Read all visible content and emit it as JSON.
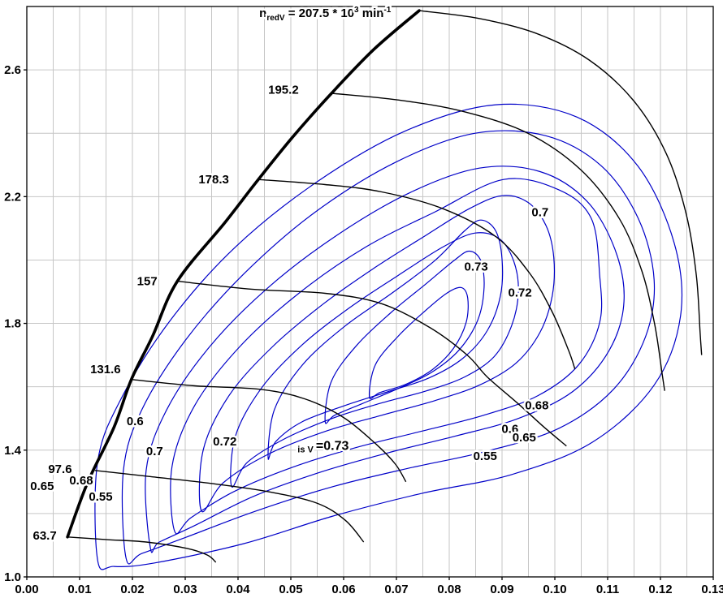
{
  "chart_data": {
    "type": "contour-map",
    "title": {
      "n": "n",
      "sub": "redV",
      "eq": " = 207.5 * 10",
      "exp": "3",
      "unit": " min",
      "unit_exp": "-1"
    },
    "center_label": {
      "sub": "is V ",
      "value": "=0.73",
      "x": 0.0562,
      "y": 1.413
    },
    "x_axis": {
      "min": 0.0,
      "max": 0.13,
      "grid_step": 0.005,
      "label_step": 0.01,
      "tick_labels": [
        "0.00",
        "0.01",
        "0.02",
        "0.03",
        "0.04",
        "0.05",
        "0.06",
        "0.07",
        "0.08",
        "0.09",
        "0.10",
        "0.11",
        "0.12",
        "0.13"
      ]
    },
    "y_axis": {
      "min": 1.0,
      "max": 2.8,
      "grid_step": 0.2,
      "label_step": 0.4,
      "tick_labels": [
        "1.0",
        "1.4",
        "1.8",
        "2.2",
        "2.6"
      ]
    },
    "colors": {
      "contour": "#0000c8",
      "line": "#000000",
      "grid": "#c6c6c6",
      "text": "#000000",
      "background": "#ffffff"
    },
    "surge_line": {
      "points": [
        [
          0.0077,
          1.126
        ],
        [
          0.0115,
          1.297
        ],
        [
          0.0165,
          1.472
        ],
        [
          0.0198,
          1.623
        ],
        [
          0.0238,
          1.759
        ],
        [
          0.0285,
          1.933
        ],
        [
          0.0375,
          2.118
        ],
        [
          0.0437,
          2.251
        ],
        [
          0.0503,
          2.387
        ],
        [
          0.0577,
          2.526
        ],
        [
          0.0657,
          2.664
        ],
        [
          0.0743,
          2.787
        ]
      ]
    },
    "speed_lines": [
      {
        "name": "63.7",
        "points": [
          [
            0.0077,
            1.126
          ],
          [
            0.0149,
            1.118
          ],
          [
            0.0226,
            1.11
          ],
          [
            0.0303,
            1.09
          ],
          [
            0.0342,
            1.069
          ],
          [
            0.0358,
            1.046
          ]
        ]
      },
      {
        "name": "97.6",
        "points": [
          [
            0.0129,
            1.336
          ],
          [
            0.0226,
            1.318
          ],
          [
            0.0349,
            1.295
          ],
          [
            0.0457,
            1.269
          ],
          [
            0.0549,
            1.233
          ],
          [
            0.0603,
            1.179
          ],
          [
            0.0638,
            1.11
          ]
        ]
      },
      {
        "name": "131.6",
        "points": [
          [
            0.0198,
            1.623
          ],
          [
            0.0318,
            1.603
          ],
          [
            0.0442,
            1.592
          ],
          [
            0.0526,
            1.562
          ],
          [
            0.06,
            1.503
          ],
          [
            0.0662,
            1.418
          ],
          [
            0.0698,
            1.356
          ],
          [
            0.0718,
            1.3
          ]
        ]
      },
      {
        "name": "157",
        "points": [
          [
            0.0285,
            1.933
          ],
          [
            0.0426,
            1.908
          ],
          [
            0.0565,
            1.895
          ],
          [
            0.0672,
            1.862
          ],
          [
            0.0765,
            1.785
          ],
          [
            0.0834,
            1.7
          ],
          [
            0.0872,
            1.631
          ],
          [
            0.0931,
            1.546
          ],
          [
            0.098,
            1.472
          ],
          [
            0.1022,
            1.413
          ]
        ]
      },
      {
        "name": "178.3",
        "points": [
          [
            0.0438,
            2.254
          ],
          [
            0.0565,
            2.238
          ],
          [
            0.0672,
            2.215
          ],
          [
            0.0788,
            2.162
          ],
          [
            0.0888,
            2.074
          ],
          [
            0.0952,
            1.959
          ],
          [
            0.0995,
            1.836
          ],
          [
            0.1026,
            1.715
          ],
          [
            0.1038,
            1.656
          ]
        ]
      },
      {
        "name": "195.2",
        "points": [
          [
            0.0577,
            2.526
          ],
          [
            0.0703,
            2.505
          ],
          [
            0.0826,
            2.469
          ],
          [
            0.0949,
            2.4
          ],
          [
            0.1049,
            2.285
          ],
          [
            0.1122,
            2.131
          ],
          [
            0.1165,
            1.964
          ],
          [
            0.1189,
            1.797
          ],
          [
            0.1203,
            1.644
          ],
          [
            0.1208,
            1.587
          ]
        ]
      },
      {
        "name": "207.5",
        "points": [
          [
            0.0743,
            2.787
          ],
          [
            0.0857,
            2.762
          ],
          [
            0.0965,
            2.715
          ],
          [
            0.1065,
            2.631
          ],
          [
            0.1149,
            2.503
          ],
          [
            0.1211,
            2.336
          ],
          [
            0.1249,
            2.144
          ],
          [
            0.1268,
            1.951
          ],
          [
            0.1275,
            1.772
          ],
          [
            0.1278,
            1.7
          ]
        ]
      }
    ],
    "efficiency_contours": [
      {
        "level": "0.55",
        "points": [
          [
            0.0134,
            1.054
          ],
          [
            0.0134,
            1.362
          ],
          [
            0.018,
            1.567
          ],
          [
            0.0272,
            1.81
          ],
          [
            0.0395,
            2.041
          ],
          [
            0.0549,
            2.246
          ],
          [
            0.0718,
            2.408
          ],
          [
            0.0888,
            2.49
          ],
          [
            0.1042,
            2.451
          ],
          [
            0.1157,
            2.297
          ],
          [
            0.1226,
            2.054
          ],
          [
            0.1238,
            1.823
          ],
          [
            0.1188,
            1.605
          ],
          [
            0.1072,
            1.426
          ],
          [
            0.0918,
            1.323
          ],
          [
            0.0749,
            1.264
          ],
          [
            0.058,
            1.192
          ],
          [
            0.0411,
            1.105
          ],
          [
            0.0242,
            1.044
          ],
          [
            0.0165,
            1.033
          ]
        ]
      },
      {
        "level": "0.6",
        "points": [
          [
            0.0188,
            1.059
          ],
          [
            0.0183,
            1.336
          ],
          [
            0.0218,
            1.528
          ],
          [
            0.03,
            1.746
          ],
          [
            0.0411,
            1.956
          ],
          [
            0.0546,
            2.151
          ],
          [
            0.07,
            2.31
          ],
          [
            0.0849,
            2.4
          ],
          [
            0.0983,
            2.392
          ],
          [
            0.1088,
            2.297
          ],
          [
            0.1158,
            2.131
          ],
          [
            0.1188,
            1.938
          ],
          [
            0.1172,
            1.759
          ],
          [
            0.1111,
            1.592
          ],
          [
            0.1008,
            1.469
          ],
          [
            0.0872,
            1.397
          ],
          [
            0.0726,
            1.344
          ],
          [
            0.058,
            1.285
          ],
          [
            0.0434,
            1.208
          ],
          [
            0.0303,
            1.126
          ],
          [
            0.0218,
            1.074
          ]
        ]
      },
      {
        "level": "0.65",
        "points": [
          [
            0.0234,
            1.092
          ],
          [
            0.0226,
            1.336
          ],
          [
            0.0265,
            1.528
          ],
          [
            0.0346,
            1.726
          ],
          [
            0.0457,
            1.913
          ],
          [
            0.0588,
            2.079
          ],
          [
            0.0726,
            2.213
          ],
          [
            0.0857,
            2.29
          ],
          [
            0.0972,
            2.279
          ],
          [
            0.106,
            2.187
          ],
          [
            0.1114,
            2.033
          ],
          [
            0.1131,
            1.869
          ],
          [
            0.1103,
            1.715
          ],
          [
            0.1034,
            1.585
          ],
          [
            0.0931,
            1.5
          ],
          [
            0.0811,
            1.444
          ],
          [
            0.0685,
            1.392
          ],
          [
            0.0557,
            1.331
          ],
          [
            0.0429,
            1.254
          ],
          [
            0.0318,
            1.162
          ],
          [
            0.0251,
            1.11
          ]
        ]
      },
      {
        "level": "0.68",
        "points": [
          [
            0.028,
            1.144
          ],
          [
            0.0275,
            1.349
          ],
          [
            0.0318,
            1.541
          ],
          [
            0.0403,
            1.726
          ],
          [
            0.0515,
            1.895
          ],
          [
            0.0642,
            2.041
          ],
          [
            0.0772,
            2.151
          ],
          [
            0.0903,
            2.254
          ],
          [
            0.1008,
            2.221
          ],
          [
            0.1069,
            2.131
          ],
          [
            0.1085,
            1.951
          ],
          [
            0.1085,
            1.803
          ],
          [
            0.1045,
            1.669
          ],
          [
            0.0968,
            1.572
          ],
          [
            0.0865,
            1.51
          ],
          [
            0.0746,
            1.459
          ],
          [
            0.0623,
            1.408
          ],
          [
            0.0503,
            1.346
          ],
          [
            0.0392,
            1.269
          ],
          [
            0.0311,
            1.187
          ]
        ]
      },
      {
        "level": "0.7",
        "points": [
          [
            0.0331,
            1.208
          ],
          [
            0.0334,
            1.4
          ],
          [
            0.0383,
            1.572
          ],
          [
            0.0465,
            1.726
          ],
          [
            0.0562,
            1.862
          ],
          [
            0.066,
            1.977
          ],
          [
            0.0757,
            2.079
          ],
          [
            0.0838,
            2.162
          ],
          [
            0.09,
            2.203
          ],
          [
            0.0949,
            2.182
          ],
          [
            0.0983,
            2.11
          ],
          [
            0.0998,
            2.008
          ],
          [
            0.0995,
            1.887
          ],
          [
            0.0972,
            1.772
          ],
          [
            0.0926,
            1.674
          ],
          [
            0.0857,
            1.605
          ],
          [
            0.0772,
            1.556
          ],
          [
            0.0672,
            1.51
          ],
          [
            0.0565,
            1.459
          ],
          [
            0.0457,
            1.387
          ],
          [
            0.0372,
            1.297
          ]
        ]
      },
      {
        "level": "0.72",
        "points": [
          [
            0.0388,
            1.285
          ],
          [
            0.0395,
            1.444
          ],
          [
            0.0445,
            1.597
          ],
          [
            0.0522,
            1.733
          ],
          [
            0.0611,
            1.849
          ],
          [
            0.0703,
            1.951
          ],
          [
            0.0788,
            2.041
          ],
          [
            0.0849,
            2.085
          ],
          [
            0.0895,
            2.067
          ],
          [
            0.0922,
            1.997
          ],
          [
            0.0931,
            1.9
          ],
          [
            0.0918,
            1.792
          ],
          [
            0.0885,
            1.695
          ],
          [
            0.0829,
            1.631
          ],
          [
            0.0757,
            1.587
          ],
          [
            0.0672,
            1.549
          ],
          [
            0.0583,
            1.503
          ],
          [
            0.0491,
            1.438
          ],
          [
            0.0418,
            1.362
          ]
        ]
      },
      {
        "level": "0.73",
        "points": [
          [
            0.0457,
            1.374
          ],
          [
            0.0469,
            1.528
          ],
          [
            0.0522,
            1.669
          ],
          [
            0.0603,
            1.792
          ],
          [
            0.0691,
            1.895
          ],
          [
            0.0772,
            1.997
          ],
          [
            0.0829,
            2.092
          ],
          [
            0.086,
            2.126
          ],
          [
            0.0888,
            2.092
          ],
          [
            0.09,
            2.003
          ],
          [
            0.0897,
            1.887
          ],
          [
            0.0872,
            1.777
          ],
          [
            0.0826,
            1.69
          ],
          [
            0.0762,
            1.628
          ],
          [
            0.0685,
            1.585
          ],
          [
            0.0603,
            1.541
          ],
          [
            0.0522,
            1.49
          ],
          [
            0.0472,
            1.428
          ]
        ]
      },
      {
        "level": "",
        "points": [
          [
            0.0565,
            1.49
          ],
          [
            0.0577,
            1.618
          ],
          [
            0.0626,
            1.733
          ],
          [
            0.0691,
            1.836
          ],
          [
            0.0757,
            1.926
          ],
          [
            0.0808,
            1.997
          ],
          [
            0.0838,
            2.028
          ],
          [
            0.086,
            1.997
          ],
          [
            0.0866,
            1.913
          ],
          [
            0.0854,
            1.81
          ],
          [
            0.0818,
            1.715
          ],
          [
            0.0765,
            1.644
          ],
          [
            0.07,
            1.592
          ],
          [
            0.0634,
            1.546
          ],
          [
            0.0583,
            1.51
          ]
        ]
      },
      {
        "level": "",
        "points": [
          [
            0.0649,
            1.567
          ],
          [
            0.066,
            1.669
          ],
          [
            0.0703,
            1.759
          ],
          [
            0.0752,
            1.836
          ],
          [
            0.0795,
            1.895
          ],
          [
            0.0823,
            1.913
          ],
          [
            0.0835,
            1.879
          ],
          [
            0.0832,
            1.803
          ],
          [
            0.0808,
            1.721
          ],
          [
            0.0768,
            1.654
          ],
          [
            0.0718,
            1.608
          ],
          [
            0.0669,
            1.582
          ]
        ]
      }
    ],
    "speed_labels": [
      {
        "text": "63.7",
        "x": 0.0034,
        "y": 1.131
      },
      {
        "text": "97.6",
        "x": 0.0063,
        "y": 1.341
      },
      {
        "text": "131.6",
        "x": 0.0149,
        "y": 1.656
      },
      {
        "text": "157",
        "x": 0.0228,
        "y": 1.933
      },
      {
        "text": "178.3",
        "x": 0.0354,
        "y": 2.254
      },
      {
        "text": "195.2",
        "x": 0.0486,
        "y": 2.538
      }
    ],
    "efficiency_labels": [
      {
        "text": "0.65",
        "x": 0.0029,
        "y": 1.287
      },
      {
        "text": "0.68",
        "x": 0.0103,
        "y": 1.305
      },
      {
        "text": "0.55",
        "x": 0.014,
        "y": 1.254
      },
      {
        "text": "0.6",
        "x": 0.0205,
        "y": 1.492
      },
      {
        "text": "0.7",
        "x": 0.0242,
        "y": 1.397
      },
      {
        "text": "0.72",
        "x": 0.0375,
        "y": 1.428
      },
      {
        "text": "0.7",
        "x": 0.0972,
        "y": 2.151
      },
      {
        "text": "0.73",
        "x": 0.0851,
        "y": 1.979
      },
      {
        "text": "0.72",
        "x": 0.0934,
        "y": 1.897
      },
      {
        "text": "0.68",
        "x": 0.0966,
        "y": 1.541
      },
      {
        "text": "0.6",
        "x": 0.0915,
        "y": 1.467
      },
      {
        "text": "0.65",
        "x": 0.0942,
        "y": 1.441
      },
      {
        "text": "0.55",
        "x": 0.0868,
        "y": 1.382
      }
    ],
    "title_pos": {
      "x": 0.0591,
      "y": 2.779
    }
  },
  "meta": {
    "aria_label": "Compressor map: pressure ratio vs reduced mass flow with reduced speed lines and isentropic efficiency contours"
  }
}
